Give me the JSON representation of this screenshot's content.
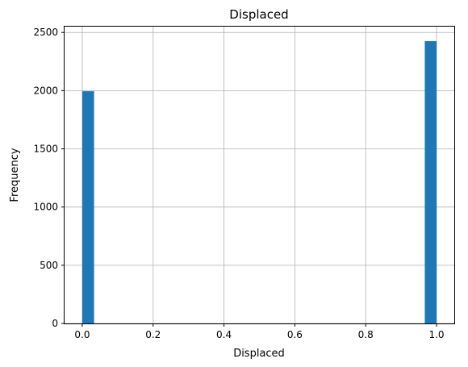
{
  "chart_data": {
    "type": "bar",
    "title": "Displaced",
    "xlabel": "Displaced",
    "ylabel": "Frequency",
    "x_ticks": [
      "0.0",
      "0.2",
      "0.4",
      "0.6",
      "0.8",
      "1.0"
    ],
    "y_ticks": [
      "0",
      "500",
      "1000",
      "1500",
      "2000",
      "2500"
    ],
    "xlim": [
      -0.05,
      1.05
    ],
    "ylim": [
      0,
      2550
    ],
    "grid": true,
    "bar_color": "#1f77b4",
    "bins": [
      {
        "x0": 0.0,
        "x1": 0.0333,
        "value": 1995
      },
      {
        "x0": 0.9667,
        "x1": 1.0,
        "value": 2425
      }
    ]
  }
}
